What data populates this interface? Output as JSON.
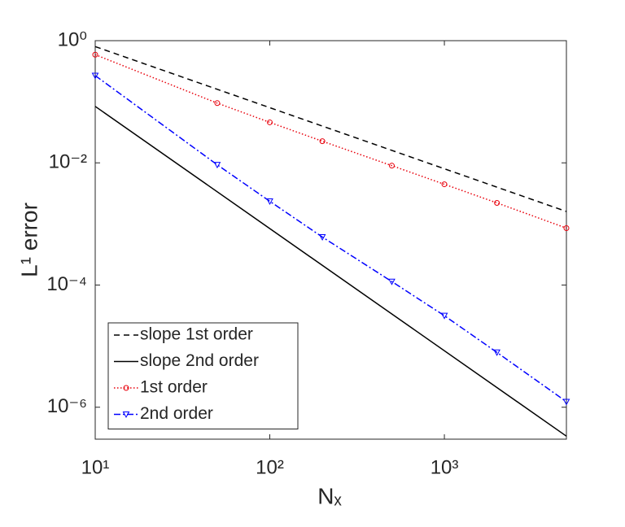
{
  "chart_data": {
    "type": "line",
    "xlabel": "Nₓ",
    "ylabel": "L¹ error",
    "log_x": true,
    "log_y": true,
    "xlim": [
      10,
      5000
    ],
    "ylim": [
      3e-07,
      1
    ],
    "xticks": [
      {
        "value": 10,
        "label": "10¹"
      },
      {
        "value": 100,
        "label": "10²"
      },
      {
        "value": 1000,
        "label": "10³"
      }
    ],
    "yticks": [
      {
        "value": 1e-06,
        "label": "10⁻⁶"
      },
      {
        "value": 0.0001,
        "label": "10⁻⁴"
      },
      {
        "value": 0.01,
        "label": "10⁻²"
      },
      {
        "value": 1,
        "label": "10⁰"
      }
    ],
    "legend": "lower left",
    "series": [
      {
        "name": "slope 1st order",
        "color": "#000000",
        "line_style": "dashed",
        "x": [
          10,
          5000
        ],
        "values": [
          0.8,
          0.0016
        ]
      },
      {
        "name": "slope 2nd order",
        "color": "#000000",
        "line_style": "solid",
        "x": [
          10,
          5000
        ],
        "values": [
          0.084,
          3.36e-07
        ]
      },
      {
        "name": "1st order",
        "color": "#e8000b",
        "line_style": "dotted",
        "marker": "circle",
        "x": [
          10,
          50,
          100,
          200,
          500,
          1000,
          2000,
          5000
        ],
        "values": [
          0.59,
          0.095,
          0.046,
          0.0226,
          0.009,
          0.00446,
          0.00221,
          0.000855
        ]
      },
      {
        "name": "2nd order",
        "color": "#0000ff",
        "line_style": "dashdot",
        "marker": "triangle-down",
        "x": [
          10,
          50,
          100,
          200,
          500,
          1000,
          2000,
          5000
        ],
        "values": [
          0.268,
          0.0093,
          0.00235,
          0.00061,
          0.000114,
          3.15e-05,
          7.9e-06,
          1.23e-06
        ]
      }
    ]
  }
}
